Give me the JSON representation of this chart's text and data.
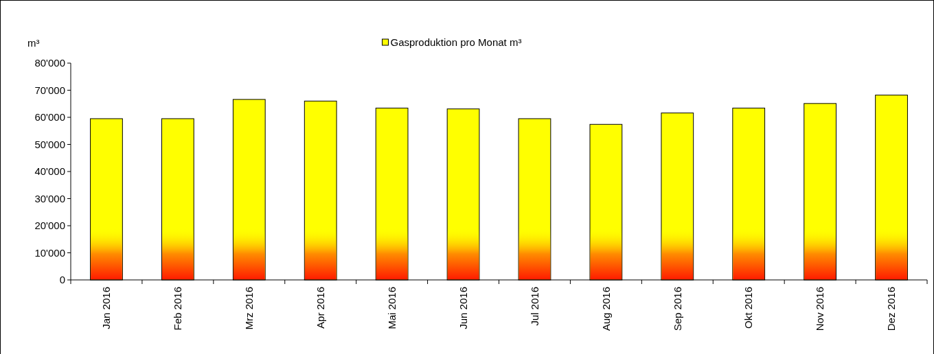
{
  "chart_data": {
    "type": "bar",
    "ylabel": "m³",
    "categories": [
      "Jan 2016",
      "Feb 2016",
      "Mrz 2016",
      "Apr 2016",
      "Mai 2016",
      "Jun 2016",
      "Jul 2016",
      "Aug 2016",
      "Sep 2016",
      "Okt 2016",
      "Nov 2016",
      "Dez 2016"
    ],
    "series": [
      {
        "name": "Gasproduktion pro Monat m³",
        "color": "#ffff00",
        "values": [
          59500,
          59500,
          66600,
          66000,
          63400,
          63100,
          59500,
          57400,
          61600,
          63400,
          65100,
          68200
        ]
      }
    ],
    "ylim": [
      0,
      80000
    ],
    "yticks": [
      0,
      {
        "value": 10000,
        "label": "10'000"
      },
      {
        "value": 20000,
        "label": "20'000"
      },
      {
        "value": 30000,
        "label": "30'000"
      },
      {
        "value": 40000,
        "label": "40'000"
      },
      {
        "value": 50000,
        "label": "50'000"
      },
      {
        "value": 60000,
        "label": "60'000"
      },
      {
        "value": 70000,
        "label": "70'000"
      },
      {
        "value": 80000,
        "label": "80'000"
      }
    ],
    "grid": false,
    "legend": "top"
  }
}
